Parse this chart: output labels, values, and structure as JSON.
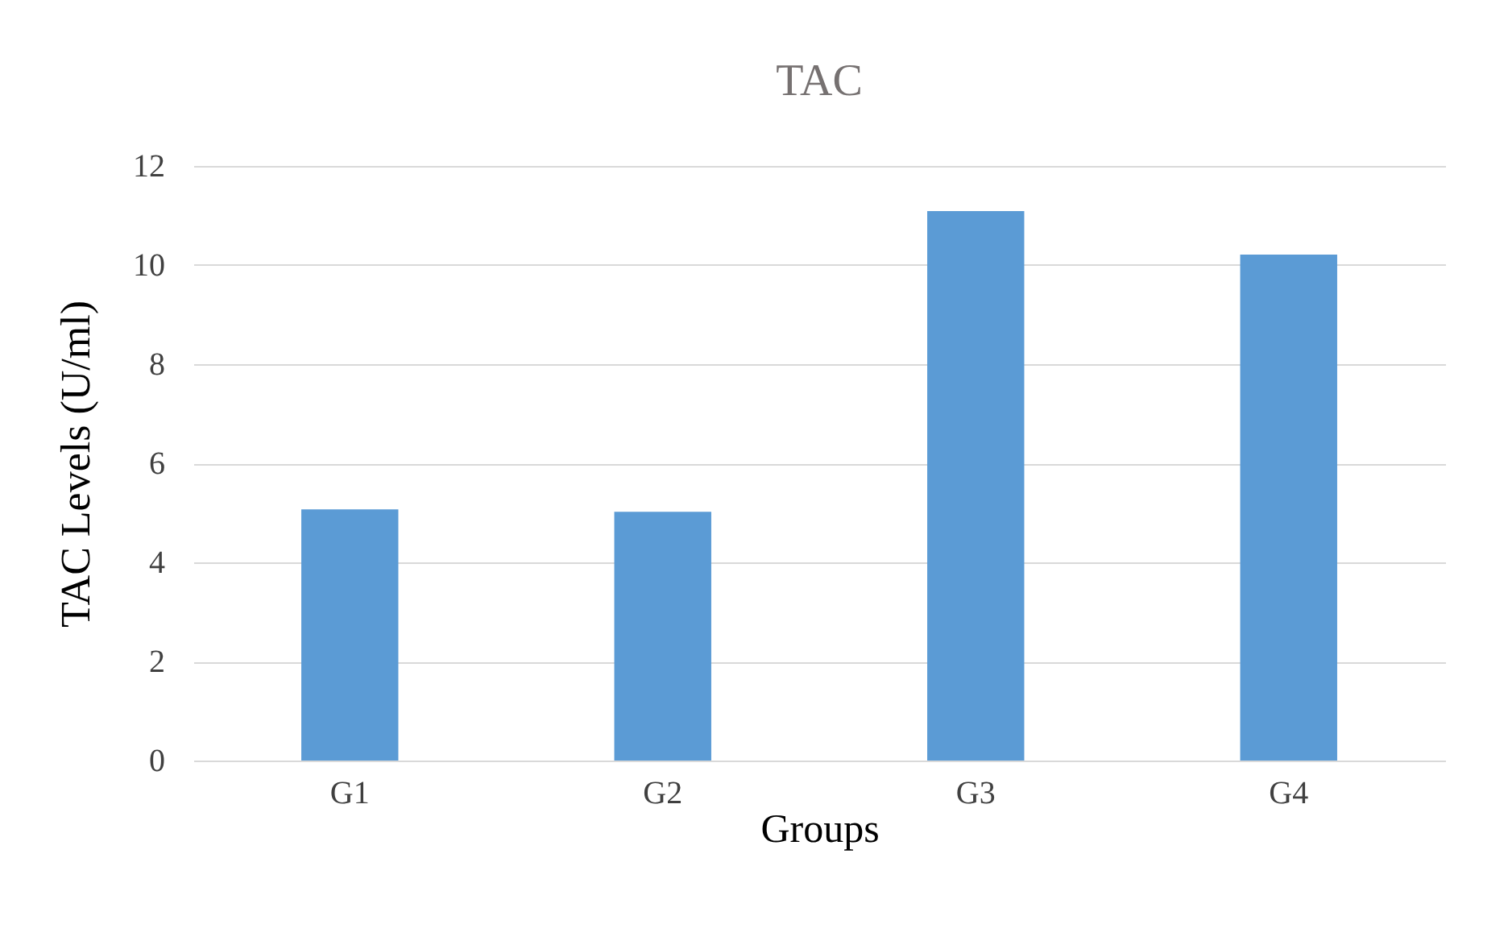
{
  "chart_data": {
    "type": "bar",
    "title": "TAC",
    "xlabel": "Groups",
    "ylabel": "TAC Levels (U/ml)",
    "categories": [
      "G1",
      "G2",
      "G3",
      "G4"
    ],
    "values": [
      5.07,
      5.02,
      11.09,
      10.21
    ],
    "color": "#5b9bd5",
    "ylim": [
      0,
      12
    ],
    "yticks": [
      0,
      2,
      4,
      6,
      8,
      10,
      12
    ],
    "grid": "y"
  }
}
